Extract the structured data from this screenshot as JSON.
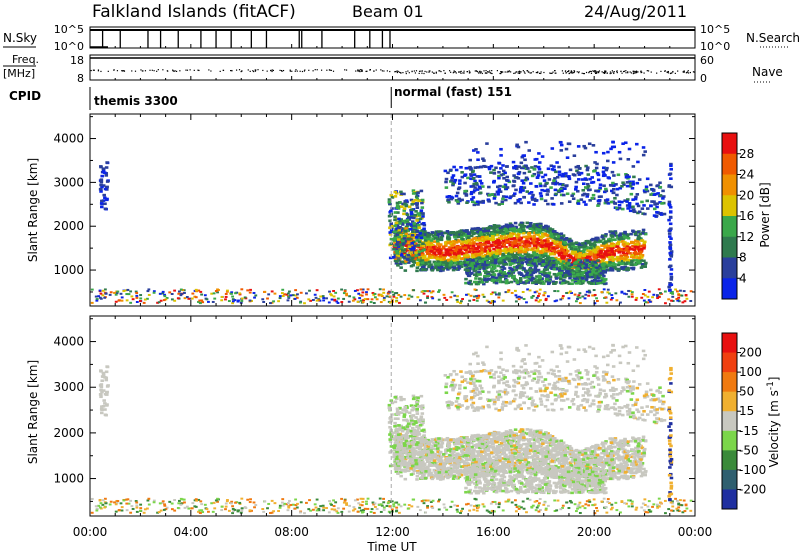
{
  "header": {
    "station": "Falkland Islands (fitACF)",
    "beam": "Beam 01",
    "date": "24/Aug/2011"
  },
  "left_labels": {
    "nsky": "N.Sky",
    "freq": "Freq.",
    "mhz": "[MHz]",
    "cpid": "CPID"
  },
  "right_labels": {
    "nsearch": "N.Search",
    "nave": "Nave"
  },
  "noise_ticks": {
    "left_top": "10^5",
    "left_bottom": "10^0",
    "right_top": "10^5",
    "right_bottom": "10^0"
  },
  "freq_ticks": {
    "left_top": "18",
    "left_bottom": "8",
    "right_top": "60",
    "right_bottom": "0"
  },
  "cpid": {
    "mode1": "themis 3300",
    "mode2": "normal (fast) 151",
    "switch_hour": 11.95
  },
  "chart_data": [
    {
      "name": "power",
      "type": "heatmap",
      "ylabel": "Slant Range [km]",
      "yticks": [
        "1000",
        "2000",
        "3000",
        "4000"
      ],
      "ylim": [
        180,
        4560
      ],
      "xlim": [
        0,
        24
      ],
      "colorbar_label": "Power [dB]",
      "colorbar_ticks": [
        "4",
        "8",
        "12",
        "16",
        "20",
        "24",
        "28"
      ],
      "colorbar_colors": [
        "#0a24e8",
        "#2a3f9c",
        "#2f7a4e",
        "#3aa84a",
        "#dcc300",
        "#f09000",
        "#f05a00",
        "#e81010"
      ]
    },
    {
      "name": "velocity",
      "type": "heatmap",
      "ylabel": "Slant Range [km]",
      "yticks": [
        "1000",
        "2000",
        "3000",
        "4000"
      ],
      "ylim": [
        180,
        4560
      ],
      "xlim": [
        0,
        24
      ],
      "colorbar_label": "Velocity [m s^-1]",
      "colorbar_ticks": [
        "200",
        "100",
        "50",
        "15",
        "-15",
        "-50",
        "-100",
        "-200"
      ],
      "colorbar_colors": [
        "#1f2fa0",
        "#2f5f6f",
        "#3a8a3a",
        "#7bd64a",
        "#c8c8c0",
        "#f0b030",
        "#f07a10",
        "#f04010",
        "#e81010"
      ]
    }
  ],
  "xaxis": {
    "label": "Time UT",
    "ticks": [
      "00:00",
      "04:00",
      "08:00",
      "12:00",
      "16:00",
      "20:00",
      "00:00"
    ]
  }
}
